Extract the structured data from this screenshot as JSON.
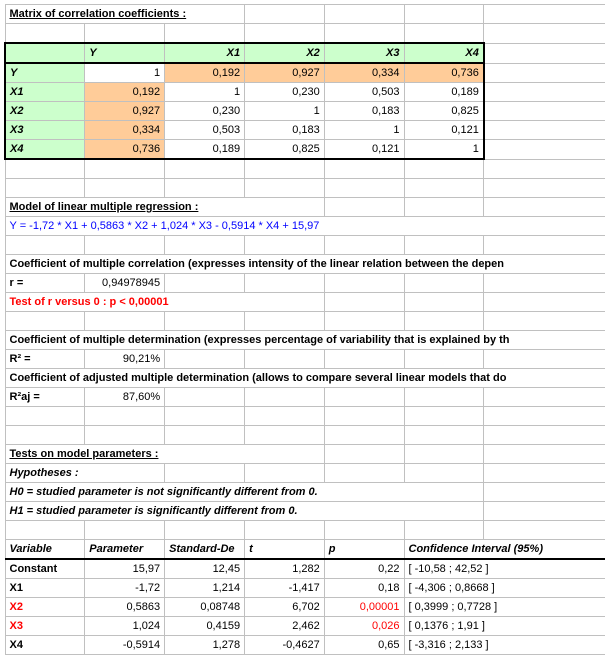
{
  "corr": {
    "title": "Matrix of correlation coefficients :",
    "headers": [
      "Y",
      "X1",
      "X2",
      "X3",
      "X4"
    ],
    "rows": [
      {
        "label": "Y",
        "vals": [
          "1",
          "0,192",
          "0,927",
          "0,334",
          "0,736"
        ]
      },
      {
        "label": "X1",
        "vals": [
          "0,192",
          "1",
          "0,230",
          "0,503",
          "0,189"
        ]
      },
      {
        "label": "X2",
        "vals": [
          "0,927",
          "0,230",
          "1",
          "0,183",
          "0,825"
        ]
      },
      {
        "label": "X3",
        "vals": [
          "0,334",
          "0,503",
          "0,183",
          "1",
          "0,121"
        ]
      },
      {
        "label": "X4",
        "vals": [
          "0,736",
          "0,189",
          "0,825",
          "0,121",
          "1"
        ]
      }
    ]
  },
  "model": {
    "title": "Model of linear multiple regression :",
    "eq": "Y = -1,72 * X1 + 0,5863 * X2 + 1,024 * X3 - 0,5914 * X4 + 15,97"
  },
  "r": {
    "title": "Coefficient of multiple correlation (expresses intensity of the linear relation between the depen",
    "label": "r =",
    "value": "0,94978945",
    "test": "Test of r versus 0 : p < 0,00001"
  },
  "r2": {
    "title": "Coefficient of multiple determination (expresses percentage of variability that is explained by th",
    "label": "R² =",
    "value": "90,21%"
  },
  "r2aj": {
    "title": "Coefficient of adjusted multiple determination (allows to compare several linear models that do",
    "label": "R²aj =",
    "value": "87,60%"
  },
  "tests": {
    "title": "Tests on model parameters :",
    "hyp": "Hypotheses :",
    "h0": "H0 = studied parameter is not significantly different from 0.",
    "h1": "H1 = studied parameter is significantly different from 0."
  },
  "params": {
    "headers": [
      "Variable",
      "Parameter",
      "Standard-De",
      "t",
      "p",
      "Confidence Interval (95%)"
    ],
    "rows": [
      {
        "v": "Constant",
        "p": "15,97",
        "se": "12,45",
        "t": "1,282",
        "pv": "0,22",
        "ci": "[ -10,58 ; 42,52 ]",
        "red": false
      },
      {
        "v": "X1",
        "p": "-1,72",
        "se": "1,214",
        "t": "-1,417",
        "pv": "0,18",
        "ci": "[ -4,306 ; 0,8668 ]",
        "red": false
      },
      {
        "v": "X2",
        "p": "0,5863",
        "se": "0,08748",
        "t": "6,702",
        "pv": "0,00001",
        "ci": "[ 0,3999 ; 0,7728 ]",
        "red": true
      },
      {
        "v": "X3",
        "p": "1,024",
        "se": "0,4159",
        "t": "2,462",
        "pv": "0,026",
        "ci": "[ 0,1376 ; 1,91 ]",
        "red": true
      },
      {
        "v": "X4",
        "p": "-0,5914",
        "se": "1,278",
        "t": "-0,4627",
        "pv": "0,65",
        "ci": "[ -3,316 ; 2,133 ]",
        "red": false
      }
    ]
  }
}
